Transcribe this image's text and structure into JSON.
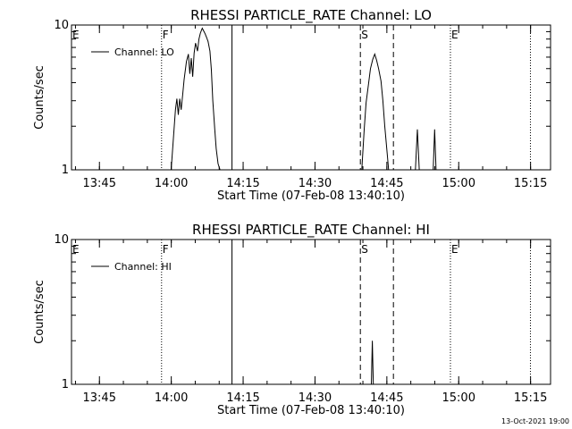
{
  "footer": {
    "timestamp": "13-Oct-2021 19:00"
  },
  "chart_data": [
    {
      "type": "line",
      "title": "RHESSI PARTICLE_RATE Channel: LO",
      "xlabel": "Start Time (07-Feb-08 13:40:10)",
      "ylabel": "Counts/sec",
      "yscale": "log",
      "ylim": [
        1,
        10
      ],
      "xlim_minutes": [
        -1,
        99
      ],
      "x_ticks": [
        {
          "min": 4.83,
          "label": "13:45"
        },
        {
          "min": 19.83,
          "label": "14:00"
        },
        {
          "min": 34.83,
          "label": "14:15"
        },
        {
          "min": 49.83,
          "label": "14:30"
        },
        {
          "min": 64.83,
          "label": "14:45"
        },
        {
          "min": 79.83,
          "label": "15:00"
        },
        {
          "min": 94.83,
          "label": "15:15"
        }
      ],
      "y_ticks": [
        {
          "v": 1,
          "label": "1"
        },
        {
          "v": 10,
          "label": "10"
        }
      ],
      "legend": {
        "label": "Channel: LO",
        "position": "top-left"
      },
      "markers": [
        {
          "min": 17.8,
          "style": "dotted",
          "label": "F"
        },
        {
          "min": 32.5,
          "style": "solid",
          "label": ""
        },
        {
          "min": 59.3,
          "style": "dashed",
          "label": "S"
        },
        {
          "min": 66.2,
          "style": "dashed",
          "label": ""
        },
        {
          "min": 78.1,
          "style": "dotted",
          "label": "E"
        },
        {
          "min": 94.8,
          "style": "dotted",
          "label": ""
        }
      ],
      "start_label": "E",
      "series": [
        {
          "x": [
            19.8,
            20.7,
            21.0,
            21.3,
            21.6,
            21.9,
            22.2,
            22.5,
            23.0,
            23.4,
            23.7,
            24.0,
            24.3,
            24.6,
            24.9,
            25.3,
            25.6,
            25.9,
            26.3,
            26.6,
            26.9,
            27.2,
            27.5,
            27.9,
            28.2,
            28.5,
            28.9,
            29.2,
            29.6,
            30.0
          ],
          "y": [
            1,
            2.6,
            3.1,
            2.4,
            3.1,
            2.6,
            3.3,
            4.2,
            5.6,
            6.3,
            4.6,
            5.9,
            4.4,
            6.4,
            7.5,
            6.6,
            8.0,
            8.8,
            9.5,
            9.1,
            8.7,
            8.2,
            7.7,
            6.6,
            4.9,
            3.0,
            1.9,
            1.4,
            1.1,
            1.0
          ]
        },
        {
          "x": [
            59.6,
            60.1,
            60.5,
            61.0,
            61.4,
            61.9,
            62.3,
            62.7,
            63.1,
            63.6,
            64.0,
            64.4,
            64.9,
            65.2
          ],
          "y": [
            1,
            1.9,
            2.9,
            3.9,
            5.0,
            5.8,
            6.3,
            5.7,
            5.0,
            4.1,
            3.0,
            2.0,
            1.3,
            1.0
          ]
        },
        {
          "x": [
            70.8,
            71.2,
            71.6
          ],
          "y": [
            1,
            1.9,
            1
          ]
        },
        {
          "x": [
            74.5,
            74.8,
            75.1
          ],
          "y": [
            1,
            1.9,
            1
          ]
        }
      ]
    },
    {
      "type": "line",
      "title": "RHESSI PARTICLE_RATE Channel: HI",
      "xlabel": "Start Time (07-Feb-08 13:40:10)",
      "ylabel": "Counts/sec",
      "yscale": "log",
      "ylim": [
        1,
        10
      ],
      "xlim_minutes": [
        -1,
        99
      ],
      "x_ticks": [
        {
          "min": 4.83,
          "label": "13:45"
        },
        {
          "min": 19.83,
          "label": "14:00"
        },
        {
          "min": 34.83,
          "label": "14:15"
        },
        {
          "min": 49.83,
          "label": "14:30"
        },
        {
          "min": 64.83,
          "label": "14:45"
        },
        {
          "min": 79.83,
          "label": "15:00"
        },
        {
          "min": 94.83,
          "label": "15:15"
        }
      ],
      "y_ticks": [
        {
          "v": 1,
          "label": "1"
        },
        {
          "v": 10,
          "label": "10"
        }
      ],
      "legend": {
        "label": "Channel: HI",
        "position": "top-left"
      },
      "markers": [
        {
          "min": 17.8,
          "style": "dotted",
          "label": "F"
        },
        {
          "min": 32.5,
          "style": "solid",
          "label": ""
        },
        {
          "min": 59.3,
          "style": "dashed",
          "label": "S"
        },
        {
          "min": 66.2,
          "style": "dashed",
          "label": ""
        },
        {
          "min": 78.1,
          "style": "dotted",
          "label": "E"
        },
        {
          "min": 94.8,
          "style": "dotted",
          "label": ""
        }
      ],
      "start_label": "E",
      "series": [
        {
          "x": [
            61.6,
            61.8,
            62.0
          ],
          "y": [
            1,
            2.0,
            1
          ]
        }
      ]
    }
  ]
}
